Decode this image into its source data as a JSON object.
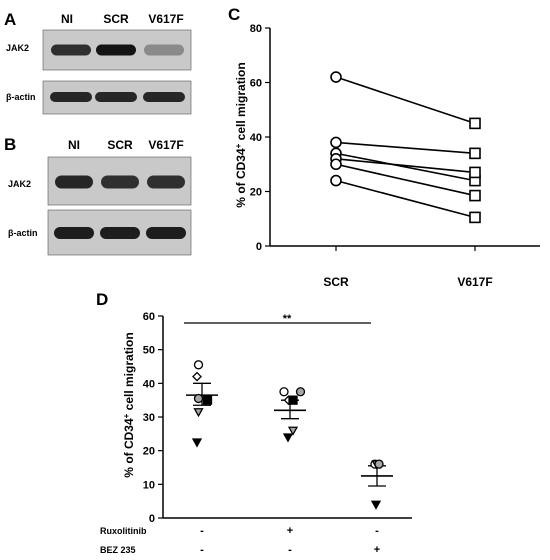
{
  "panels": {
    "A": {
      "letter": "A",
      "lanes": [
        "NI",
        "SCR",
        "V617F"
      ],
      "blots": [
        {
          "label": "JAK2",
          "band_intensity": [
            0.85,
            1.0,
            0.35
          ]
        },
        {
          "label": "β-actin",
          "band_intensity": [
            0.9,
            0.9,
            0.9
          ]
        }
      ]
    },
    "B": {
      "letter": "B",
      "lanes": [
        "NI",
        "SCR",
        "V617F"
      ],
      "blots": [
        {
          "label": "JAK2",
          "band_intensity": [
            0.9,
            0.85,
            0.85
          ]
        },
        {
          "label": "β-actin",
          "band_intensity": [
            0.95,
            0.95,
            0.95
          ]
        }
      ]
    },
    "C": {
      "letter": "C"
    },
    "D": {
      "letter": "D"
    }
  },
  "chart_data": [
    {
      "panel": "C",
      "type": "scatter",
      "categories": [
        "SCR",
        "V617F"
      ],
      "paired": true,
      "ylabel": "% of CD34+ cell migration",
      "ylim": [
        0,
        80
      ],
      "yticks": [
        0,
        20,
        40,
        60,
        80
      ],
      "series": [
        {
          "values": [
            62,
            45
          ]
        },
        {
          "values": [
            38,
            34
          ]
        },
        {
          "values": [
            34,
            24
          ]
        },
        {
          "values": [
            32,
            27
          ]
        },
        {
          "values": [
            30,
            18.5
          ]
        },
        {
          "values": [
            24,
            10.5
          ]
        }
      ]
    },
    {
      "panel": "D",
      "type": "scatter",
      "ylabel": "% of CD34+ cell migration",
      "ylim": [
        0,
        60
      ],
      "yticks": [
        0,
        10,
        20,
        30,
        40,
        50,
        60
      ],
      "treatments": [
        {
          "label": "Ruxolitinib",
          "values": [
            "-",
            "+",
            "-"
          ]
        },
        {
          "label": "BEZ 235",
          "values": [
            "-",
            "-",
            "+"
          ]
        }
      ],
      "groups": [
        {
          "mean": 36.5,
          "sem_low": 33.5,
          "sem_high": 40,
          "points": [
            {
              "marker": "circle-open",
              "x_offset": -0.35,
              "y": 45.5
            },
            {
              "marker": "diamond-open",
              "x_offset": -0.5,
              "y": 42
            },
            {
              "marker": "circle-gray",
              "x_offset": -0.35,
              "y": 35.5
            },
            {
              "marker": "square-black",
              "x_offset": 0.55,
              "y": 35
            },
            {
              "marker": "triangle-down-gray",
              "x_offset": -0.35,
              "y": 31.5
            },
            {
              "marker": "triangle-down-black",
              "x_offset": -0.5,
              "y": 22.5
            }
          ]
        },
        {
          "mean": 32,
          "sem_low": 29.5,
          "sem_high": 35,
          "points": [
            {
              "marker": "circle-open",
              "x_offset": -0.6,
              "y": 37.5
            },
            {
              "marker": "circle-gray",
              "x_offset": 1.05,
              "y": 37.5
            },
            {
              "marker": "diamond-open",
              "x_offset": -0.15,
              "y": 35
            },
            {
              "marker": "square-black",
              "x_offset": 0.3,
              "y": 35
            },
            {
              "marker": "triangle-down-gray",
              "x_offset": 0.3,
              "y": 26
            },
            {
              "marker": "triangle-down-black",
              "x_offset": -0.2,
              "y": 24
            }
          ]
        },
        {
          "mean": 12.5,
          "sem_low": 9.5,
          "sem_high": 15.5,
          "points": [
            {
              "marker": "circle-open",
              "x_offset": -0.2,
              "y": 16
            },
            {
              "marker": "triangle-down-gray",
              "x_offset": -0.05,
              "y": 16
            },
            {
              "marker": "circle-gray",
              "x_offset": 0.2,
              "y": 16
            },
            {
              "marker": "triangle-down-black",
              "x_offset": -0.1,
              "y": 4
            }
          ]
        }
      ],
      "significance": {
        "from": 0,
        "to": 2,
        "label": "**"
      }
    }
  ],
  "colors": {
    "ink": "#000000",
    "gray_marker": "#a6a6a6",
    "blot_bg": "#c9c9c9",
    "blot_band": "#141414"
  }
}
